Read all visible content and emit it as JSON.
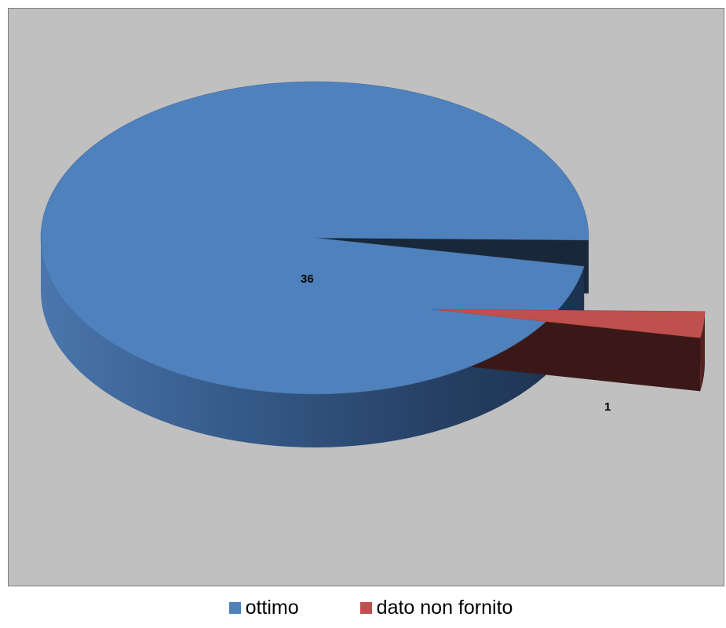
{
  "chart_data": {
    "type": "pie",
    "style": "3d-exploded",
    "slices": [
      {
        "label": "ottimo",
        "value": 36,
        "color": "#4f81bd"
      },
      {
        "label": "dato non fornito",
        "value": 1,
        "color": "#c0504d"
      }
    ],
    "data_labels": [
      "36",
      "1"
    ],
    "legend_position": "bottom",
    "background_color": "#c0c0c0"
  },
  "legend": {
    "items": [
      {
        "label": "ottimo",
        "color": "#4f81bd"
      },
      {
        "label": "dato non fornito",
        "color": "#c0504d"
      }
    ]
  }
}
